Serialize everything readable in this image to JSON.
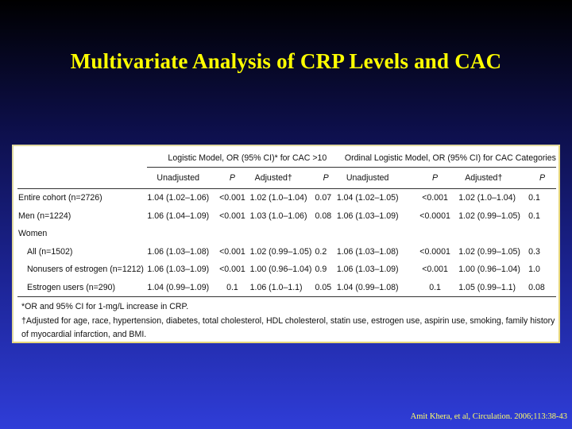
{
  "slide": {
    "title": "Multivariate Analysis of CRP Levels and CAC",
    "citation": "Amit Khera, et al, Circulation. 2006;113:38-43"
  },
  "table": {
    "group_headers": [
      "Logistic Model, OR (95% CI)* for CAC >10",
      "Ordinal Logistic Model, OR (95% CI) for CAC Categories"
    ],
    "sub_headers": [
      "Unadjusted",
      "P",
      "Adjusted†",
      "P",
      "Unadjusted",
      "P",
      "Adjusted†",
      "P"
    ],
    "rows": [
      {
        "label": "Entire cohort (n=2726)",
        "cells": [
          "1.04 (1.02–1.06)",
          "<0.001",
          "1.02 (1.0–1.04)",
          "0.07",
          "1.04 (1.02–1.05)",
          "<0.001",
          "1.02 (1.0–1.04)",
          "0.1"
        ]
      },
      {
        "label": "Men (n=1224)",
        "cells": [
          "1.06 (1.04–1.09)",
          "<0.001",
          "1.03 (1.0–1.06)",
          "0.08",
          "1.06 (1.03–1.09)",
          "<0.0001",
          "1.02 (0.99–1.05)",
          "0.1"
        ]
      },
      {
        "label": "Women",
        "cells": [
          "",
          "",
          "",
          "",
          "",
          "",
          "",
          ""
        ]
      },
      {
        "label": "All (n=1502)",
        "cells": [
          "1.06 (1.03–1.08)",
          "<0.001",
          "1.02 (0.99–1.05)",
          "0.2",
          "1.06 (1.03–1.08)",
          "<0.0001",
          "1.02 (0.99–1.05)",
          "0.3"
        ]
      },
      {
        "label": "Nonusers of estrogen (n=1212)",
        "cells": [
          "1.06 (1.03–1.09)",
          "<0.001",
          "1.00 (0.96–1.04)",
          "0.9",
          "1.06 (1.03–1.09)",
          "<0.001",
          "1.00 (0.96–1.04)",
          "1.0"
        ]
      },
      {
        "label": "Estrogen users (n=290)",
        "cells": [
          "1.04 (0.99–1.09)",
          "0.1",
          "1.06 (1.0–1.1)",
          "0.05",
          "1.04 (0.99–1.08)",
          "0.1",
          "1.05 (0.99–1.1)",
          "0.08"
        ]
      }
    ],
    "footnotes": [
      "*OR and 95% CI for 1-mg/L increase in CRP.",
      "†Adjusted for age, race, hypertension, diabetes, total cholesterol, HDL cholesterol, statin use, estrogen use, aspirin use, smoking, family history",
      "of myocardial infarction, and BMI."
    ]
  },
  "colors": {
    "title": "#ffff00",
    "citation": "#ffff66",
    "panel_border": "#e8d77a"
  }
}
